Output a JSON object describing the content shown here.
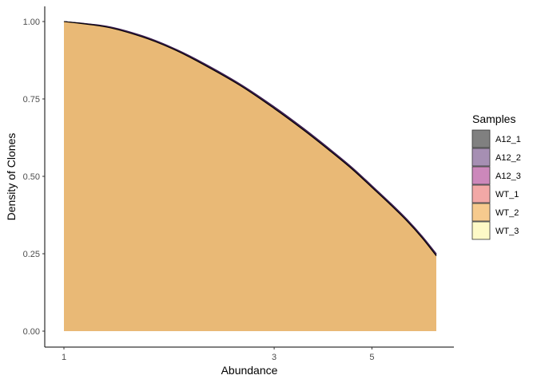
{
  "chart_data": {
    "type": "area",
    "title": "",
    "xlabel": "Abundance",
    "ylabel": "Density of Clones",
    "x_scale": "log",
    "xlim": [
      1,
      7
    ],
    "ylim": [
      0,
      1
    ],
    "x_ticks": [
      {
        "value": 1,
        "label": "1"
      },
      {
        "value": 3,
        "label": "3"
      },
      {
        "value": 5,
        "label": "5"
      }
    ],
    "y_ticks": [
      {
        "value": 0,
        "label": "0.00"
      },
      {
        "value": 0.25,
        "label": "0.25"
      },
      {
        "value": 0.5,
        "label": "0.50"
      },
      {
        "value": 0.75,
        "label": "0.75"
      },
      {
        "value": 1,
        "label": "1.00"
      }
    ],
    "grid": false,
    "legend": {
      "title": "Samples",
      "position": "right"
    },
    "x": [
      1,
      1.25,
      1.5,
      1.75,
      2,
      2.5,
      3,
      3.5,
      4,
      4.5,
      5,
      5.5,
      6,
      6.5,
      7
    ],
    "series": [
      {
        "name": "A12_1",
        "color": "#808080",
        "values": [
          1.0,
          0.985,
          0.955,
          0.918,
          0.878,
          0.8,
          0.725,
          0.655,
          0.59,
          0.53,
          0.47,
          0.415,
          0.362,
          0.307,
          0.25
        ]
      },
      {
        "name": "A12_2",
        "color": "#a68fb3",
        "values": [
          1.0,
          0.984,
          0.954,
          0.917,
          0.877,
          0.799,
          0.724,
          0.654,
          0.589,
          0.529,
          0.469,
          0.414,
          0.361,
          0.306,
          0.249
        ]
      },
      {
        "name": "A12_3",
        "color": "#cc88bb",
        "values": [
          1.0,
          0.984,
          0.954,
          0.917,
          0.876,
          0.798,
          0.723,
          0.653,
          0.588,
          0.528,
          0.468,
          0.413,
          0.36,
          0.305,
          0.248
        ]
      },
      {
        "name": "WT_1",
        "color": "#f2a8a6",
        "values": [
          1.0,
          0.983,
          0.953,
          0.916,
          0.875,
          0.797,
          0.722,
          0.652,
          0.587,
          0.527,
          0.467,
          0.412,
          0.359,
          0.304,
          0.247
        ]
      },
      {
        "name": "WT_2",
        "color": "#f6ca8e",
        "values": [
          1.0,
          0.983,
          0.952,
          0.915,
          0.874,
          0.796,
          0.72,
          0.65,
          0.585,
          0.525,
          0.465,
          0.41,
          0.357,
          0.302,
          0.245
        ]
      },
      {
        "name": "WT_3",
        "color": "#fdf9c7",
        "values": [
          1.0,
          0.982,
          0.951,
          0.914,
          0.873,
          0.795,
          0.719,
          0.649,
          0.584,
          0.524,
          0.464,
          0.409,
          0.356,
          0.301,
          0.243
        ]
      }
    ],
    "area_fill": "#e9b976",
    "area_outline_colors": [
      "#000000",
      "#3b1f4f"
    ]
  }
}
